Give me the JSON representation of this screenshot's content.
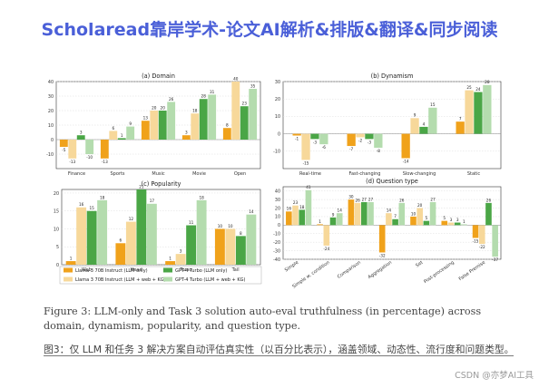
{
  "banner": "Scholaread靠岸学术-论文AI解析&排版&翻译&同步阅读",
  "caption_en": "Figure 3: LLM-only and Task 3 solution auto-eval truthfulness (in percentage) across domain, dynamism, popularity, and question type.",
  "caption_zh": "图3：仅 LLM 和任务 3 解决方案自动评估真实性（以百分比表示），涵盖领域、动态性、流行度和问题类型。",
  "watermark": "CSDN @亦梦AI工具",
  "colors": {
    "llama_llm": "#f0a21b",
    "llama_web": "#f7d89a",
    "gpt_llm": "#4aa646",
    "gpt_web": "#b4dcae"
  },
  "chart_data": [
    {
      "type": "bar",
      "title": "(a) Domain",
      "categories": [
        "Finance",
        "Sports",
        "Music",
        "Movie",
        "Open"
      ],
      "ylim": [
        -20,
        40
      ],
      "yticks": [
        -10,
        0,
        10,
        20,
        30,
        40
      ],
      "series": [
        {
          "name": "Llama 3 70B Instruct (LLM only)",
          "values": [
            -5,
            -13,
            13,
            3,
            8
          ]
        },
        {
          "name": "Llama 3 70B Instruct (LLM + web + KG)",
          "values": [
            -13,
            6,
            20,
            18,
            40
          ]
        },
        {
          "name": "GPT-4 Turbo (LLM only)",
          "values": [
            3,
            1,
            20,
            28,
            23
          ]
        },
        {
          "name": "GPT-4 Turbo (LLM + web + KG)",
          "values": [
            -10,
            9,
            26,
            31,
            35
          ]
        }
      ]
    },
    {
      "type": "bar",
      "title": "(b) Dynamism",
      "categories": [
        "Real-time",
        "Fast-changing",
        "Slow-changing",
        "Static"
      ],
      "ylim": [
        -20,
        30
      ],
      "yticks": [
        -10,
        0,
        10,
        20,
        30
      ],
      "series": [
        {
          "name": "Llama 3 70B Instruct (LLM only)",
          "values": [
            -1,
            -7,
            -14,
            7
          ]
        },
        {
          "name": "Llama 3 70B Instruct (LLM + web + KG)",
          "values": [
            -15,
            -2,
            9,
            25
          ]
        },
        {
          "name": "GPT-4 Turbo (LLM only)",
          "values": [
            -3,
            -3,
            4,
            24
          ]
        },
        {
          "name": "GPT-4 Turbo (LLM + web + KG)",
          "values": [
            -6,
            -8,
            15,
            28
          ]
        }
      ]
    },
    {
      "type": "bar",
      "title": "(c) Popularity",
      "categories": [
        "Web",
        "Head",
        "Torso",
        "Tail"
      ],
      "ylim": [
        0,
        21
      ],
      "yticks": [
        0,
        5,
        10,
        15,
        20
      ],
      "series": [
        {
          "name": "Llama 3 70B Instruct (LLM only)",
          "values": [
            1,
            6,
            1,
            10
          ]
        },
        {
          "name": "Llama 3 70B Instruct (LLM + web + KG)",
          "values": [
            16,
            12,
            3,
            10
          ]
        },
        {
          "name": "GPT-4 Turbo (LLM only)",
          "values": [
            15,
            21,
            11,
            8
          ]
        },
        {
          "name": "GPT-4 Turbo (LLM + web + KG)",
          "values": [
            18,
            17,
            18,
            14
          ]
        }
      ]
    },
    {
      "type": "bar",
      "title": "(d) Question type",
      "categories": [
        "Simple",
        "Simple w. condition",
        "Comparison",
        "Aggregation",
        "Set",
        "Post-processing",
        "False Premise"
      ],
      "ylim": [
        -40,
        45
      ],
      "yticks": [
        -40,
        -30,
        -20,
        -10,
        0,
        10,
        20,
        30,
        40
      ],
      "series": [
        {
          "name": "Llama 3 70B Instruct (LLM only)",
          "values": [
            16,
            1,
            30,
            -32,
            10,
            5,
            -15
          ]
        },
        {
          "name": "Llama 3 70B Instruct (LLM + web + KG)",
          "values": [
            23,
            -24,
            26,
            14,
            20,
            3,
            -22
          ]
        },
        {
          "name": "GPT-4 Turbo (LLM only)",
          "values": [
            18,
            9,
            27,
            7,
            5,
            3,
            26
          ]
        },
        {
          "name": "GPT-4 Turbo (LLM + web + KG)",
          "values": [
            41,
            14,
            27,
            26,
            27,
            1,
            -37
          ]
        }
      ]
    }
  ],
  "legend": [
    "Llama 3 70B Instruct (LLM only)",
    "GPT-4 Turbo (LLM only)",
    "Llama 3 70B Instruct (LLM + web + KG)",
    "GPT-4 Turbo (LLM + web + KG)"
  ]
}
